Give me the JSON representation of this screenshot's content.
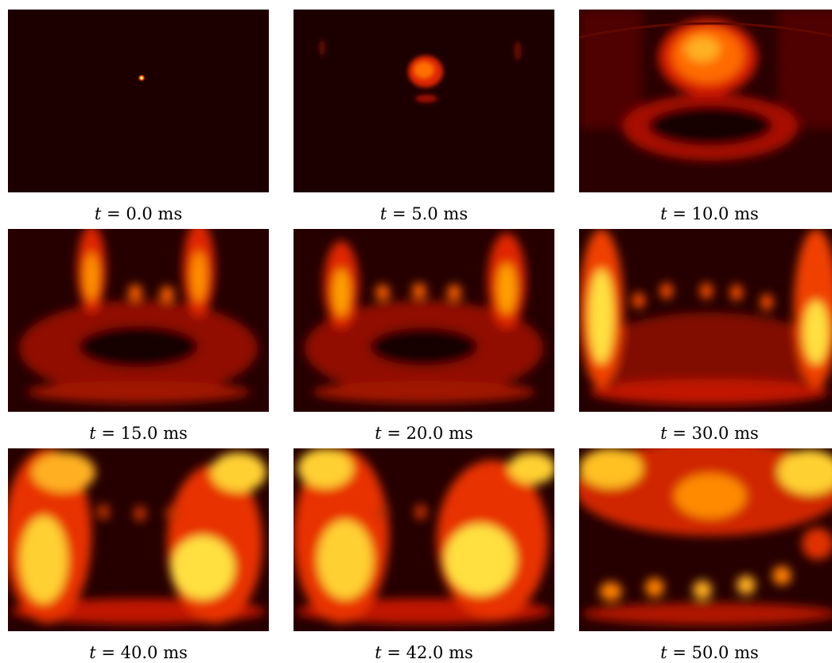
{
  "colors": {
    "background": "#ffffff",
    "flame_dark": "#1c0000",
    "flame_mid": "#c01000",
    "flame_hot": "#ffff40"
  },
  "panels": [
    {
      "var": "t",
      "eq": "=",
      "value": "0.0",
      "unit": "ms"
    },
    {
      "var": "t",
      "eq": "=",
      "value": "5.0",
      "unit": "ms"
    },
    {
      "var": "t",
      "eq": "=",
      "value": "10.0",
      "unit": "ms"
    },
    {
      "var": "t",
      "eq": "=",
      "value": "15.0",
      "unit": "ms"
    },
    {
      "var": "t",
      "eq": "=",
      "value": "20.0",
      "unit": "ms"
    },
    {
      "var": "t",
      "eq": "=",
      "value": "30.0",
      "unit": "ms"
    },
    {
      "var": "t",
      "eq": "=",
      "value": "40.0",
      "unit": "ms"
    },
    {
      "var": "t",
      "eq": "=",
      "value": "42.0",
      "unit": "ms"
    },
    {
      "var": "t",
      "eq": "=",
      "value": "50.0",
      "unit": "ms"
    }
  ]
}
